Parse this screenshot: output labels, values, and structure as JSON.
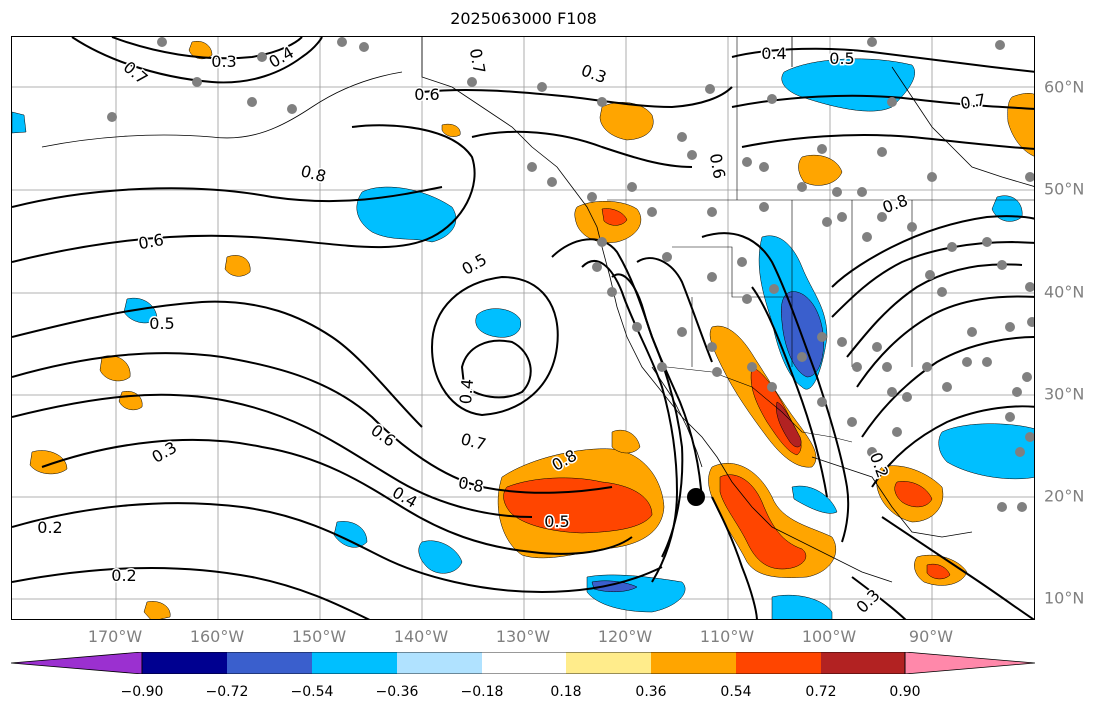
{
  "title": "2025063000 F108",
  "lon_labels": [
    "170°W",
    "160°W",
    "150°W",
    "140°W",
    "130°W",
    "120°W",
    "110°W",
    "100°W",
    "90°W"
  ],
  "lat_labels": [
    "60°N",
    "50°N",
    "40°N",
    "30°N",
    "20°N",
    "10°N"
  ],
  "contour_labels": [
    "0.3",
    "0.4",
    "0.5",
    "0.6",
    "0.7",
    "0.8",
    "0.2",
    "0.3",
    "0.4",
    "0.5",
    "0.6",
    "0.7",
    "0.8",
    "0.2",
    "0.3",
    "0.4",
    "0.5",
    "0.6",
    "0.7",
    "0.8",
    "0.3",
    "0.2",
    "0.4",
    "0.5",
    "0.6",
    "0.7",
    "0.8"
  ],
  "colorbar": {
    "ticks": [
      "−0.90",
      "−0.72",
      "−0.54",
      "−0.36",
      "−0.18",
      "0.18",
      "0.36",
      "0.54",
      "0.72",
      "0.90"
    ],
    "colors": [
      "#9b30d0",
      "#000090",
      "#3a5fcd",
      "#00bfff",
      "#b0e2ff",
      "#ffffff",
      "#ffec8b",
      "#ffa500",
      "#ff4500",
      "#b22222",
      "#ff88aa"
    ]
  },
  "field_colors": {
    "neg_light": "#00bfff",
    "neg_mid": "#3a5fcd",
    "pos_light": "#ffa500",
    "pos_mid": "#ff4500",
    "pos_dark": "#b22222",
    "station": "#808080",
    "storm_center": "#000000"
  }
}
